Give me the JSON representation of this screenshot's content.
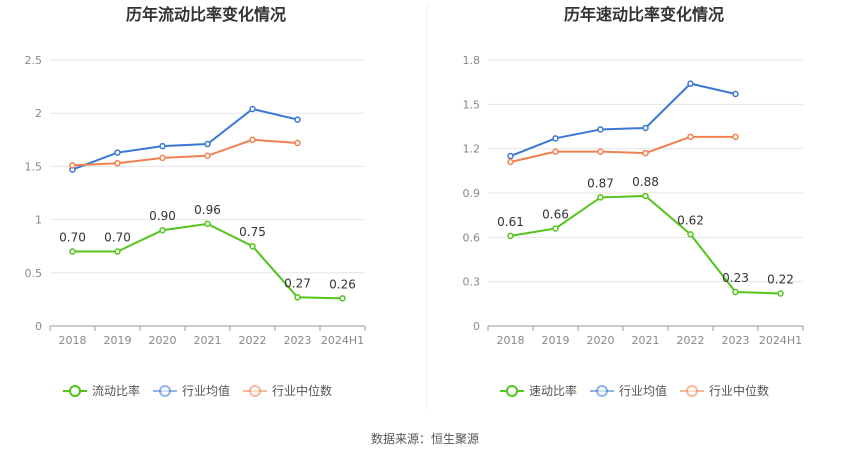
{
  "source_text": "数据来源：恒生聚源",
  "chart_data": [
    {
      "type": "line",
      "title": "历年流动比率变化情况",
      "categories": [
        "2018",
        "2019",
        "2020",
        "2021",
        "2022",
        "2023",
        "2024H1"
      ],
      "ylim": [
        0,
        2.5
      ],
      "yticks": [
        "0",
        "0.5",
        "1",
        "1.5",
        "2",
        "2.5"
      ],
      "grid": true,
      "legend_position": "bottom",
      "series": [
        {
          "name": "流动比率",
          "color": "#52c41a",
          "values": [
            0.7,
            0.7,
            0.9,
            0.96,
            0.75,
            0.27,
            0.26
          ],
          "labels": [
            "0.70",
            "0.70",
            "0.90",
            "0.96",
            "0.75",
            "0.27",
            "0.26"
          ]
        },
        {
          "name": "行业均值",
          "color": "#3a78d6",
          "values": [
            1.47,
            1.63,
            1.69,
            1.71,
            2.04,
            1.94,
            null
          ]
        },
        {
          "name": "行业中位数",
          "color": "#f08050",
          "values": [
            1.51,
            1.53,
            1.58,
            1.6,
            1.75,
            1.72,
            null
          ]
        }
      ]
    },
    {
      "type": "line",
      "title": "历年速动比率变化情况",
      "categories": [
        "2018",
        "2019",
        "2020",
        "2021",
        "2022",
        "2023",
        "2024H1"
      ],
      "ylim": [
        0,
        1.8
      ],
      "yticks": [
        "0",
        "0.3",
        "0.6",
        "0.9",
        "1.2",
        "1.5",
        "1.8"
      ],
      "grid": true,
      "legend_position": "bottom",
      "series": [
        {
          "name": "速动比率",
          "color": "#52c41a",
          "values": [
            0.61,
            0.66,
            0.87,
            0.88,
            0.62,
            0.23,
            0.22
          ],
          "labels": [
            "0.61",
            "0.66",
            "0.87",
            "0.88",
            "0.62",
            "0.23",
            "0.22"
          ]
        },
        {
          "name": "行业均值",
          "color": "#3a78d6",
          "values": [
            1.15,
            1.27,
            1.33,
            1.34,
            1.64,
            1.57,
            null
          ]
        },
        {
          "name": "行业中位数",
          "color": "#f08050",
          "values": [
            1.11,
            1.18,
            1.18,
            1.17,
            1.28,
            1.28,
            null
          ]
        }
      ]
    }
  ]
}
